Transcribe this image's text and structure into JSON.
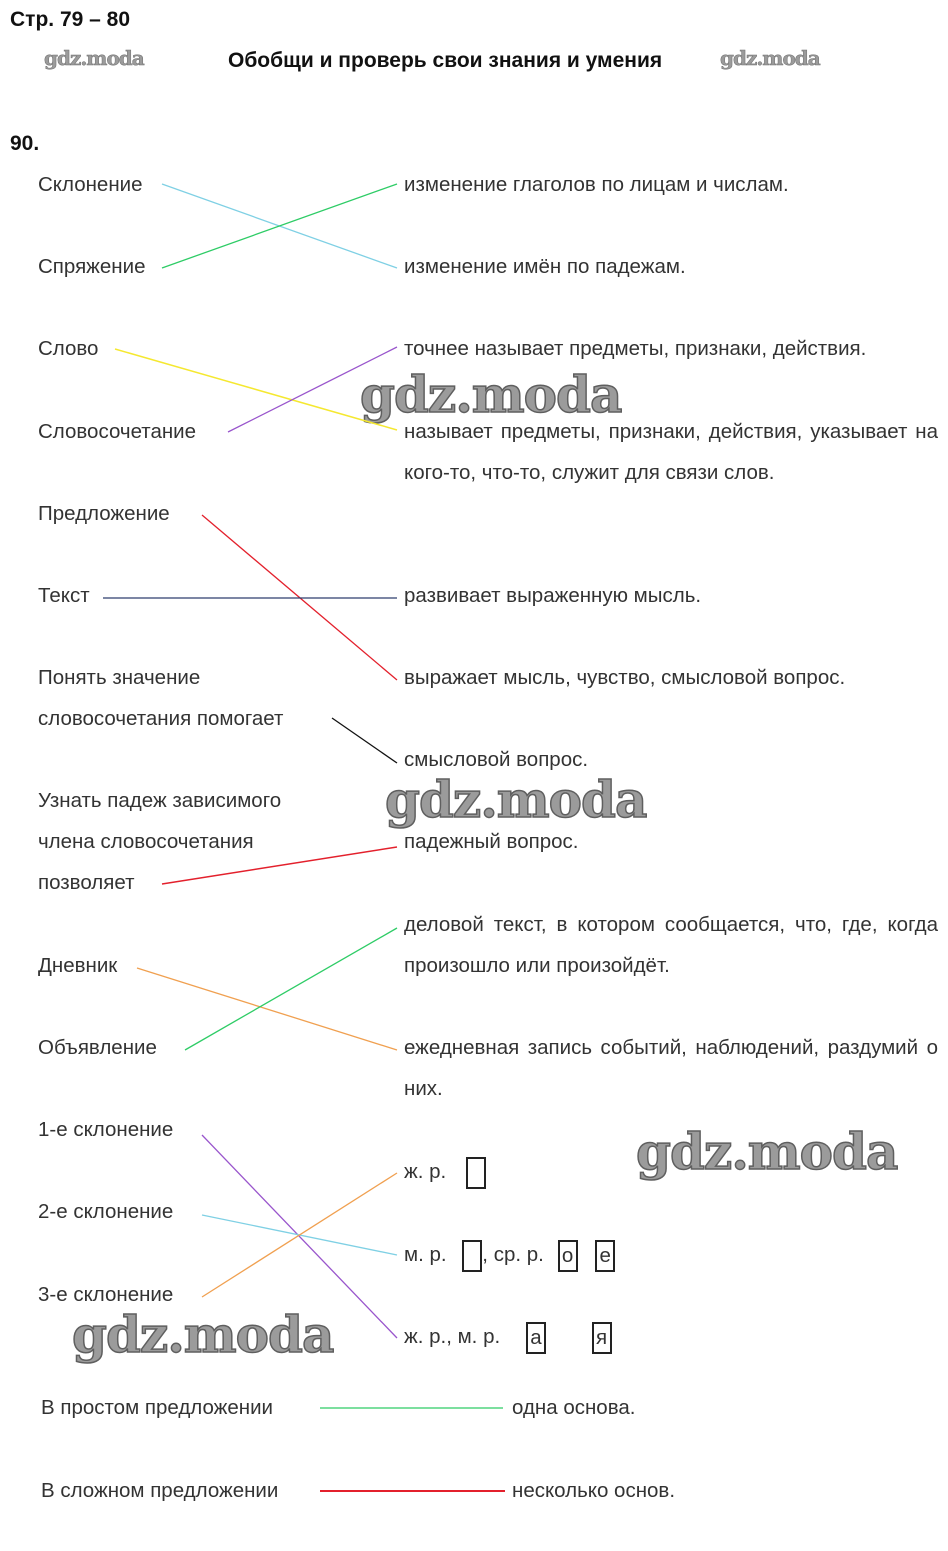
{
  "header": {
    "pages": "Стр. 79 – 80",
    "title": "Обобщи и проверь свои знания и умения",
    "exercise": "90."
  },
  "watermark": "gdz.moda",
  "left": {
    "skl": "Склонение",
    "spr": "Спряжение",
    "slovo": "Слово",
    "slovosoch": "Словосочетание",
    "predl": "Предложение",
    "tekst": "Текст",
    "ponyat1": "Понять значение",
    "ponyat2": "словосочетания помогает",
    "uznat1": "Узнать падеж зависимого",
    "uznat2": "члена словосочетания",
    "uznat3": "позволяет",
    "dnevnik": "Дневник",
    "obyavl": "Объявление",
    "skl1": "1-е склонение",
    "skl2": "2-е склонение",
    "skl3": "3-е склонение",
    "prostoe": "В простом предложении",
    "slozhnoe": "В сложном предложении"
  },
  "right": {
    "r1": "изменение глаголов по лицам и числам.",
    "r2": "изменение имён по падежам.",
    "r3": "точнее называет предметы, признаки, действия.",
    "r4": "называет предметы, признаки, действия, указывает на кого-то, что-то, служит для связи слов.",
    "r5": "развивает выраженную мысль.",
    "r6": "выражает мысль, чувство, смысловой вопрос.",
    "r7": "смысловой вопрос.",
    "r8": "падежный вопрос.",
    "r9": "деловой текст, в котором сообщается, что, где, когда произошло или произойдёт.",
    "r10": "ежедневная запись событий, наблюдений, раздумий о них.",
    "g1": "ж. р.",
    "g2a": "м. р.",
    "g2b": ", ср. р.",
    "g2o": "о",
    "g2e": "е",
    "g3": "ж. р., м. р.",
    "g3a": "а",
    "g3ya": "я",
    "osn1": "одна основа.",
    "osn2": "несколько основ."
  },
  "colors": {
    "lightblue": "#7fd0e4",
    "green": "#2ecc66",
    "yellow": "#f5e830",
    "purple": "#9955cc",
    "red": "#e3202c",
    "navy": "#2d3f6e",
    "black": "#111111",
    "orange": "#f0a050"
  }
}
